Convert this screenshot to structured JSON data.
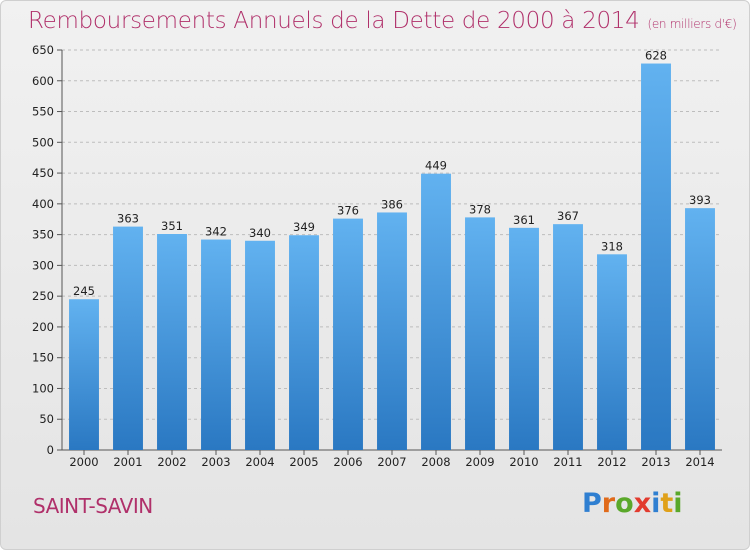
{
  "header": {
    "title": "Remboursements Annuels de la Dette de 2000 à 2014",
    "unit": "(en milliers d'€)"
  },
  "footer": {
    "place": "SAINT-SAVIN",
    "logo_letters": [
      "P",
      "r",
      "o",
      "x",
      "i",
      "t",
      "i"
    ]
  },
  "colors": {
    "bar": "#3d8fd6",
    "title": "#b0306a",
    "grid": "#bdbdbd",
    "logo_letters": [
      "#2f7fd1",
      "#e06a1a",
      "#5aa82a",
      "#e23b2e",
      "#2f7fd1",
      "#e0a11a",
      "#5aa82a"
    ]
  },
  "chart_data": {
    "type": "bar",
    "title": "Remboursements Annuels de la Dette de 2000 à 2014",
    "categories": [
      "2000",
      "2001",
      "2002",
      "2003",
      "2004",
      "2005",
      "2006",
      "2007",
      "2008",
      "2009",
      "2010",
      "2011",
      "2012",
      "2013",
      "2014"
    ],
    "values": [
      245,
      363,
      351,
      342,
      340,
      349,
      376,
      386,
      449,
      378,
      361,
      367,
      318,
      628,
      393
    ],
    "ylim": [
      0,
      650
    ],
    "yticks": [
      0,
      50,
      100,
      150,
      200,
      250,
      300,
      350,
      400,
      450,
      500,
      550,
      600,
      650
    ],
    "grid": true
  }
}
